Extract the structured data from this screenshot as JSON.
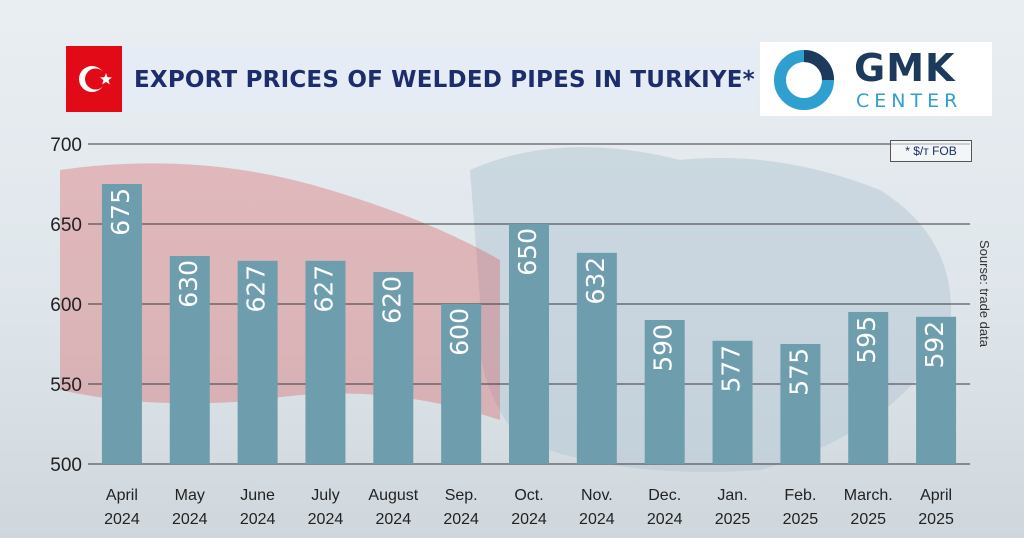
{
  "header": {
    "title": "EXPORT PRICES OF WELDED PIPES IN TURKIYE*",
    "logo_main": "GMK",
    "logo_sub": "CENTER"
  },
  "notes": {
    "unit": "* $/т FOB",
    "source": "Sourse: trade data"
  },
  "colors": {
    "bar": "#6e9eae",
    "title": "#1d2d6b",
    "flag": "#e30a17",
    "logo_dark": "#1d3a5c",
    "logo_light": "#2f9fd0"
  },
  "chart_data": {
    "type": "bar",
    "title": "EXPORT PRICES OF WELDED PIPES IN TURKIYE*",
    "categories": [
      [
        "April",
        "2024"
      ],
      [
        "May",
        "2024"
      ],
      [
        "June",
        "2024"
      ],
      [
        "July",
        "2024"
      ],
      [
        "August",
        "2024"
      ],
      [
        "Sep.",
        "2024"
      ],
      [
        "Oct.",
        "2024"
      ],
      [
        "Nov.",
        "2024"
      ],
      [
        "Dec.",
        "2024"
      ],
      [
        "Jan.",
        "2025"
      ],
      [
        "Feb.",
        "2025"
      ],
      [
        "March.",
        "2025"
      ],
      [
        "April",
        "2025"
      ]
    ],
    "values": [
      675,
      630,
      627,
      627,
      620,
      600,
      650,
      632,
      590,
      577,
      575,
      595,
      592
    ],
    "ylim": [
      500,
      700
    ],
    "yticks": [
      500,
      550,
      600,
      650,
      700
    ],
    "grid": true,
    "data_labels": true
  }
}
